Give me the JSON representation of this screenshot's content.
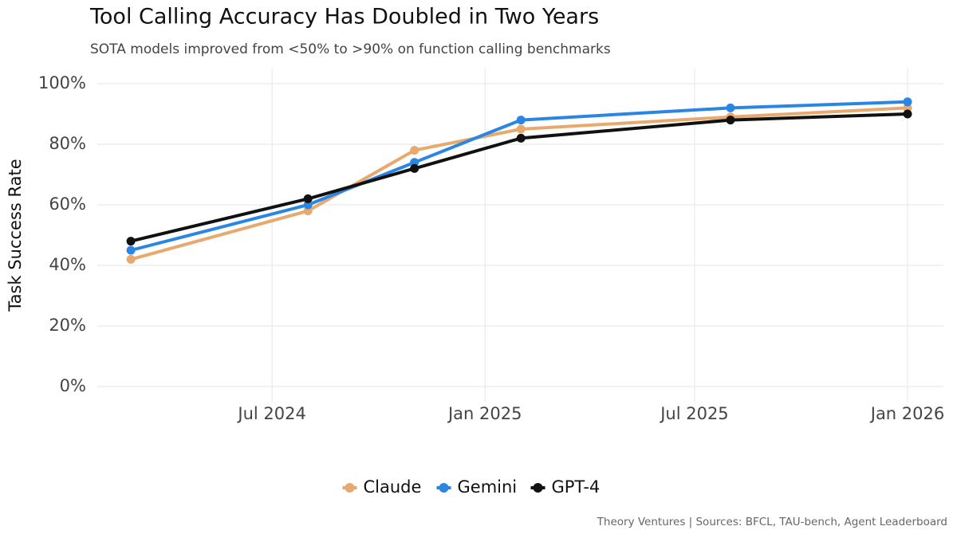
{
  "chart_data": {
    "type": "line",
    "title": "Tool Calling Accuracy Has Doubled in Two Years",
    "subtitle": "SOTA models improved from <50% to >90% on function calling benchmarks",
    "y_label": "Task Success Rate",
    "caption": "Theory Ventures | Sources: BFCL, TAU-bench, Agent Leaderboard",
    "x": [
      "2024-03",
      "2024-08",
      "2024-11",
      "2025-02",
      "2025-08",
      "2026-01"
    ],
    "series": [
      {
        "name": "Claude",
        "color": "#e8a96e",
        "values": [
          42,
          58,
          78,
          85,
          89,
          92
        ]
      },
      {
        "name": "Gemini",
        "color": "#2b86e3",
        "values": [
          45,
          60,
          74,
          88,
          92,
          94
        ]
      },
      {
        "name": "GPT-4",
        "color": "#111111",
        "values": [
          48,
          62,
          72,
          82,
          88,
          90
        ]
      }
    ],
    "xlim": [
      "2024-02",
      "2026-02"
    ],
    "xticks": [
      {
        "value": "2024-07",
        "label": "Jul 2024"
      },
      {
        "value": "2025-01",
        "label": "Jan 2025"
      },
      {
        "value": "2025-07",
        "label": "Jul 2025"
      },
      {
        "value": "2026-01",
        "label": "Jan 2026"
      }
    ],
    "ylim": [
      -5,
      105
    ],
    "yticks": [
      {
        "value": 0,
        "label": "0%"
      },
      {
        "value": 20,
        "label": "20%"
      },
      {
        "value": 40,
        "label": "40%"
      },
      {
        "value": 60,
        "label": "60%"
      },
      {
        "value": 80,
        "label": "80%"
      },
      {
        "value": 100,
        "label": "100%"
      }
    ],
    "grid": true,
    "legend": "bottom"
  }
}
